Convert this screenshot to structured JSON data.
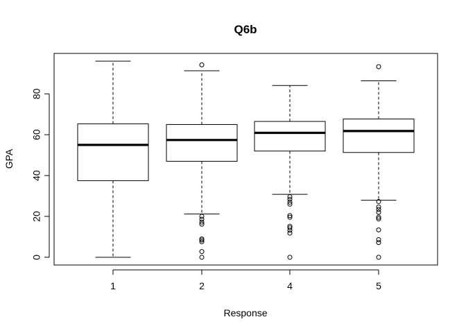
{
  "chart_data": {
    "type": "boxplot",
    "title": "Q6b",
    "xlabel": "Response",
    "ylabel": "GPA",
    "categories": [
      "1",
      "2",
      "4",
      "5"
    ],
    "yticks": [
      0,
      20,
      40,
      60,
      80
    ],
    "ylim": [
      -3.8,
      99.8
    ],
    "grid": false,
    "boxes": [
      {
        "name": "1",
        "whisker_low": 0,
        "q1": 37.5,
        "median": 55,
        "q3": 65.3,
        "whisker_high": 96,
        "outliers": []
      },
      {
        "name": "2",
        "whisker_low": 21.2,
        "q1": 47,
        "median": 57.4,
        "q3": 65,
        "whisker_high": 91.3,
        "outliers": [
          0,
          2.8,
          7.6,
          8.4,
          9,
          16.2,
          17.2,
          18.6,
          20,
          94.2
        ]
      },
      {
        "name": "4",
        "whisker_low": 30.8,
        "q1": 52,
        "median": 60.9,
        "q3": 66.5,
        "whisker_high": 84.1,
        "outliers": [
          0,
          11.8,
          13.2,
          14.4,
          15.2,
          19.6,
          20.4,
          26,
          27,
          28.4,
          29.6
        ]
      },
      {
        "name": "5",
        "whisker_low": 27.9,
        "q1": 51.3,
        "median": 61.8,
        "q3": 67.7,
        "whisker_high": 86.4,
        "outliers": [
          0,
          7.2,
          8.6,
          13.4,
          18.8,
          19.6,
          22,
          23.4,
          24.6,
          27.3,
          93.3
        ]
      }
    ]
  }
}
